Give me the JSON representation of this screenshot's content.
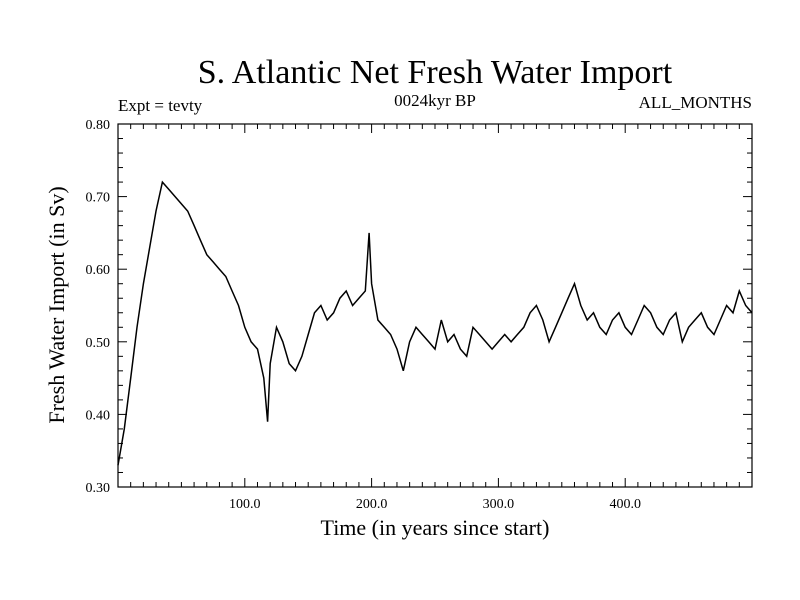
{
  "chart_data": {
    "type": "line",
    "title": "S. Atlantic Net Fresh Water Import",
    "subtitle_left": "Expt = tevty",
    "subtitle_center": "0024kyr BP",
    "subtitle_right": "ALL_MONTHS",
    "xlabel": "Time (in years since start)",
    "ylabel": "Fresh Water Import (in Sv)",
    "xlim": [
      0,
      500
    ],
    "ylim": [
      0.3,
      0.8
    ],
    "x_ticks": [
      "100.0",
      "200.0",
      "300.0",
      "400.0"
    ],
    "x_tick_values": [
      100,
      200,
      300,
      400
    ],
    "y_ticks": [
      "0.30",
      "0.40",
      "0.50",
      "0.60",
      "0.70",
      "0.80"
    ],
    "y_tick_values": [
      0.3,
      0.4,
      0.5,
      0.6,
      0.7,
      0.8
    ],
    "grid": false,
    "legend": "none",
    "line_color": "#000000",
    "series": [
      {
        "x": [
          0,
          5,
          10,
          15,
          20,
          25,
          30,
          35,
          40,
          45,
          50,
          55,
          60,
          65,
          70,
          75,
          80,
          85,
          90,
          95,
          100,
          105,
          110,
          115,
          118,
          120,
          125,
          130,
          135,
          140,
          145,
          150,
          155,
          160,
          165,
          170,
          175,
          180,
          185,
          190,
          195,
          198,
          200,
          205,
          210,
          215,
          220,
          225,
          230,
          235,
          240,
          245,
          250,
          255,
          260,
          265,
          270,
          275,
          280,
          285,
          290,
          295,
          300,
          305,
          310,
          315,
          320,
          325,
          330,
          335,
          340,
          345,
          350,
          355,
          360,
          365,
          370,
          375,
          380,
          385,
          390,
          395,
          400,
          405,
          410,
          415,
          420,
          425,
          430,
          435,
          440,
          445,
          450,
          455,
          460,
          465,
          470,
          475,
          480,
          485,
          490,
          495,
          500
        ],
        "values": [
          0.33,
          0.38,
          0.45,
          0.52,
          0.58,
          0.63,
          0.68,
          0.72,
          0.71,
          0.7,
          0.69,
          0.68,
          0.66,
          0.64,
          0.62,
          0.61,
          0.6,
          0.59,
          0.57,
          0.55,
          0.52,
          0.5,
          0.49,
          0.45,
          0.39,
          0.47,
          0.52,
          0.5,
          0.47,
          0.46,
          0.48,
          0.51,
          0.54,
          0.55,
          0.53,
          0.54,
          0.56,
          0.57,
          0.55,
          0.56,
          0.57,
          0.65,
          0.58,
          0.53,
          0.52,
          0.51,
          0.49,
          0.46,
          0.5,
          0.52,
          0.51,
          0.5,
          0.49,
          0.53,
          0.5,
          0.51,
          0.49,
          0.48,
          0.52,
          0.51,
          0.5,
          0.49,
          0.5,
          0.51,
          0.5,
          0.51,
          0.52,
          0.54,
          0.55,
          0.53,
          0.5,
          0.52,
          0.54,
          0.56,
          0.58,
          0.55,
          0.53,
          0.54,
          0.52,
          0.51,
          0.53,
          0.54,
          0.52,
          0.51,
          0.53,
          0.55,
          0.54,
          0.52,
          0.51,
          0.53,
          0.54,
          0.5,
          0.52,
          0.53,
          0.54,
          0.52,
          0.51,
          0.53,
          0.55,
          0.54,
          0.57,
          0.55,
          0.54
        ]
      }
    ]
  }
}
